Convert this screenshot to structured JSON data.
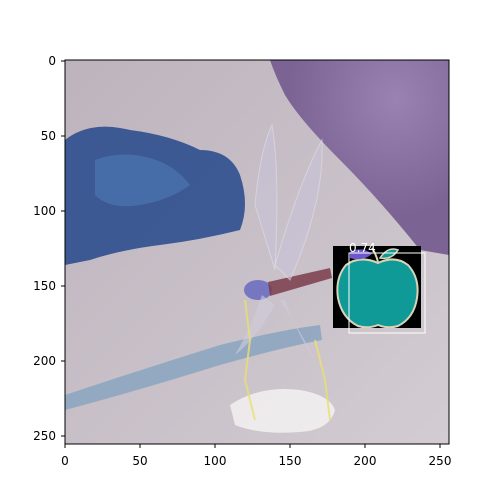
{
  "axes": {
    "x_ticks": [
      "0",
      "50",
      "100",
      "150",
      "200",
      "250"
    ],
    "y_ticks": [
      "0",
      "50",
      "100",
      "150",
      "200",
      "250"
    ],
    "xlim": [
      0,
      256
    ],
    "ylim": [
      256,
      0
    ]
  },
  "detection": {
    "score_label": "0.74",
    "box_color": "#ffffff",
    "mask_color": "#0f9a97"
  },
  "colors": {
    "background_purple": "#8f76a6",
    "water_blue": "#2d4f8e",
    "sand_gray": "#c8c0c6"
  }
}
